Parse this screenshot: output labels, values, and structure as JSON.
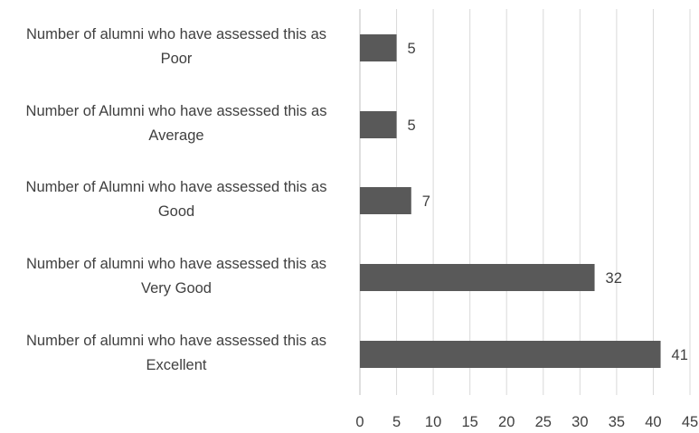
{
  "chart_data": {
    "type": "bar",
    "orientation": "horizontal",
    "categories": [
      [
        "Number of alumni who have assessed this as",
        "Poor"
      ],
      [
        "Number of Alumni who have assessed this as",
        "Average"
      ],
      [
        "Number of Alumni who have assessed this as",
        "Good"
      ],
      [
        "Number of alumni who have assessed this as",
        "Very Good"
      ],
      [
        "Number of alumni who have assessed this as",
        "Excellent"
      ]
    ],
    "values": [
      5,
      5,
      7,
      32,
      41
    ],
    "data_labels": [
      "5",
      "5",
      "7",
      "32",
      "41"
    ],
    "xlim": [
      0,
      45
    ],
    "x_ticks": [
      "0",
      "5",
      "10",
      "15",
      "20",
      "25",
      "30",
      "35",
      "40",
      "45"
    ],
    "bar_color": "#595959",
    "grid": true,
    "legend": "none"
  }
}
